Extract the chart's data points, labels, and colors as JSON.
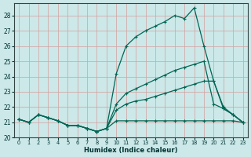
{
  "xlabel": "Humidex (Indice chaleur)",
  "bg_color": "#cce8e8",
  "grid_color": "#d4a0a0",
  "line_color": "#006655",
  "xlim": [
    -0.5,
    23.5
  ],
  "ylim": [
    20.0,
    28.8
  ],
  "yticks": [
    20,
    21,
    22,
    23,
    24,
    25,
    26,
    27,
    28
  ],
  "xticks": [
    0,
    1,
    2,
    3,
    4,
    5,
    6,
    7,
    8,
    9,
    10,
    11,
    12,
    13,
    14,
    15,
    16,
    17,
    18,
    19,
    20,
    21,
    22,
    23
  ],
  "s1": [
    21.2,
    21.0,
    21.5,
    21.3,
    21.1,
    20.8,
    20.8,
    20.6,
    20.4,
    20.6,
    21.1,
    21.1,
    21.1,
    21.1,
    21.1,
    21.1,
    21.1,
    21.1,
    21.1,
    21.1,
    21.1,
    21.1,
    21.1,
    21.0
  ],
  "s2": [
    21.2,
    21.0,
    21.5,
    21.3,
    21.1,
    20.8,
    20.8,
    20.6,
    20.4,
    20.6,
    24.2,
    26.0,
    26.6,
    27.0,
    27.3,
    27.6,
    28.0,
    27.8,
    28.5,
    26.0,
    23.7,
    21.9,
    21.5,
    21.0
  ],
  "s3": [
    21.2,
    21.0,
    21.5,
    21.3,
    21.1,
    20.8,
    20.8,
    20.6,
    20.4,
    20.6,
    21.8,
    22.2,
    22.4,
    22.5,
    22.7,
    22.9,
    23.1,
    23.3,
    23.5,
    23.7,
    23.7,
    22.0,
    21.5,
    21.0
  ],
  "s4": [
    21.2,
    21.0,
    21.5,
    21.3,
    21.1,
    20.8,
    20.8,
    20.6,
    20.4,
    20.6,
    22.2,
    22.9,
    23.2,
    23.5,
    23.8,
    24.1,
    24.4,
    24.6,
    24.8,
    25.0,
    22.2,
    21.9,
    21.5,
    21.0
  ]
}
